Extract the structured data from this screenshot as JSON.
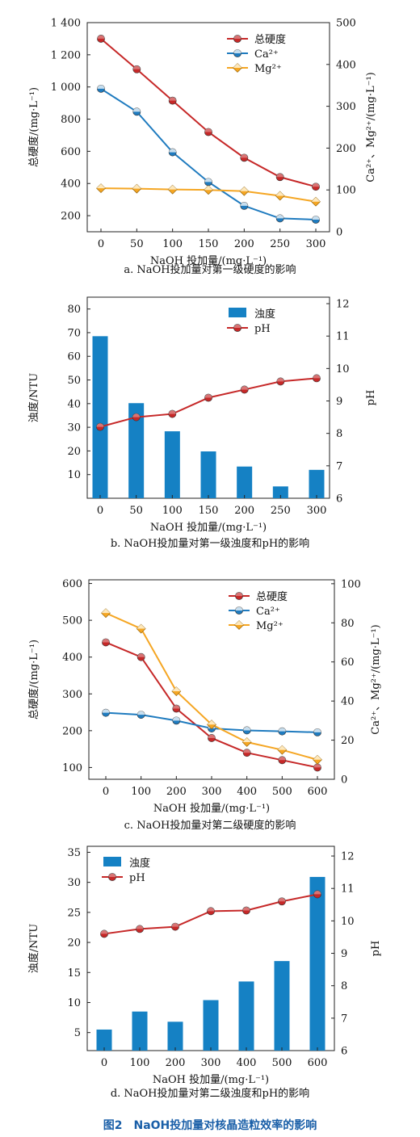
{
  "colors": {
    "total_hardness": "#c62828",
    "ca": "#1f7bbf",
    "mg": "#f5a623",
    "bar": "#1581c4",
    "ph": "#c62828",
    "figure_title": "#1a5fa8"
  },
  "figure_title": "图2　NaOH投加量对核晶造粒效率的影响",
  "chart_data": [
    {
      "id": "a",
      "type": "line",
      "caption": "a. NaOH投加量对第一级硬度的影响",
      "xlabel": "NaOH 投加量/(mg·L⁻¹)",
      "ylabel_left": "总硬度/(mg·L⁻¹)",
      "ylabel_right": "Ca²⁺、Mg²⁺/(mg·L⁻¹)",
      "x": [
        0,
        50,
        100,
        150,
        200,
        250,
        300
      ],
      "xticks": [
        "0",
        "50",
        "100",
        "150",
        "200",
        "250",
        "300"
      ],
      "ylim_left": [
        100,
        1400
      ],
      "yticks_left": [
        "200",
        "400",
        "600",
        "800",
        "1 000",
        "1 200",
        "1 400"
      ],
      "ytick_values_left": [
        200,
        400,
        600,
        800,
        1000,
        1200,
        1400
      ],
      "ylim_right": [
        0,
        500
      ],
      "yticks_right": [
        "0",
        "100",
        "200",
        "300",
        "400",
        "500"
      ],
      "ytick_values_right": [
        0,
        100,
        200,
        300,
        400,
        500
      ],
      "legend_position": "top-right",
      "series": [
        {
          "name": "总硬度",
          "axis": "left",
          "color": "#c62828",
          "values": [
            1300,
            1110,
            915,
            720,
            560,
            440,
            380
          ]
        },
        {
          "name": "Ca²⁺",
          "axis": "right",
          "color": "#1f7bbf",
          "values": [
            342,
            287,
            190,
            119,
            62,
            32,
            29
          ]
        },
        {
          "name": "Mg²⁺",
          "axis": "right",
          "color": "#f5a623",
          "values": [
            104,
            103,
            101,
            100,
            97,
            86,
            72
          ]
        }
      ]
    },
    {
      "id": "b",
      "type": "bar+line",
      "caption": "b. NaOH投加量对第一级浊度和pH的影响",
      "xlabel": "NaOH 投加量/(mg·L⁻¹)",
      "ylabel_left": "浊度/NTU",
      "ylabel_right": "pH",
      "x": [
        0,
        50,
        100,
        150,
        200,
        250,
        300
      ],
      "xticks": [
        "0",
        "50",
        "100",
        "150",
        "200",
        "250",
        "300"
      ],
      "ylim_left": [
        0,
        85
      ],
      "yticks_left": [
        "10",
        "20",
        "30",
        "40",
        "50",
        "60",
        "70",
        "80"
      ],
      "ytick_values_left": [
        10,
        20,
        30,
        40,
        50,
        60,
        70,
        80
      ],
      "ylim_right": [
        6,
        12.2
      ],
      "yticks_right": [
        "6",
        "7",
        "8",
        "9",
        "10",
        "11",
        "12"
      ],
      "ytick_values_right": [
        6,
        7,
        8,
        9,
        10,
        11,
        12
      ],
      "legend_position": "top-right",
      "series": [
        {
          "name": "浊度",
          "kind": "bar",
          "axis": "left",
          "color": "#1581c4",
          "values": [
            68.5,
            40.2,
            28.3,
            19.8,
            13.4,
            5.0,
            12.0
          ]
        },
        {
          "name": "pH",
          "kind": "line",
          "axis": "right",
          "color": "#c62828",
          "values": [
            8.2,
            8.5,
            8.6,
            9.1,
            9.35,
            9.6,
            9.7
          ]
        }
      ]
    },
    {
      "id": "c",
      "type": "line",
      "caption": "c. NaOH投加量对第二级硬度的影响",
      "xlabel": "NaOH 投加量/(mg·L⁻¹)",
      "ylabel_left": "总硬度/(mg·L⁻¹)",
      "ylabel_right": "Ca²⁺、Mg²⁺/(mg·L⁻¹)",
      "x": [
        0,
        100,
        200,
        300,
        400,
        500,
        600
      ],
      "xticks": [
        "0",
        "100",
        "200",
        "300",
        "400",
        "500",
        "600"
      ],
      "ylim_left": [
        68,
        610
      ],
      "yticks_left": [
        "100",
        "200",
        "300",
        "400",
        "500",
        "600"
      ],
      "ytick_values_left": [
        100,
        200,
        300,
        400,
        500,
        600
      ],
      "ylim_right": [
        0,
        102
      ],
      "yticks_right": [
        "0",
        "20",
        "40",
        "60",
        "80",
        "100"
      ],
      "ytick_values_right": [
        0,
        20,
        40,
        60,
        80,
        100
      ],
      "legend_position": "top-right",
      "series": [
        {
          "name": "总硬度",
          "axis": "left",
          "color": "#c62828",
          "values": [
            440,
            400,
            260,
            180,
            140,
            120,
            100
          ]
        },
        {
          "name": "Ca²⁺",
          "axis": "right",
          "color": "#1f7bbf",
          "values": [
            34,
            33,
            30,
            26,
            25,
            24.5,
            24
          ]
        },
        {
          "name": "Mg²⁺",
          "axis": "right",
          "color": "#f5a623",
          "values": [
            85,
            77,
            45,
            28,
            19,
            15,
            10
          ]
        }
      ]
    },
    {
      "id": "d",
      "type": "bar+line",
      "caption": "d. NaOH投加量对第二级浊度和pH的影响",
      "xlabel": "NaOH 投加量/(mg·L⁻¹)",
      "ylabel_left": "浊度/NTU",
      "ylabel_right": "pH",
      "x": [
        0,
        100,
        200,
        300,
        400,
        500,
        600
      ],
      "xticks": [
        "0",
        "100",
        "200",
        "300",
        "400",
        "500",
        "600"
      ],
      "ylim_left": [
        2,
        36
      ],
      "yticks_left": [
        "5",
        "10",
        "15",
        "20",
        "25",
        "30",
        "35"
      ],
      "ytick_values_left": [
        5,
        10,
        15,
        20,
        25,
        30,
        35
      ],
      "ylim_right": [
        6,
        12.3
      ],
      "yticks_right": [
        "6",
        "7",
        "8",
        "9",
        "10",
        "11",
        "12"
      ],
      "ytick_values_right": [
        6,
        7,
        8,
        9,
        10,
        11,
        12
      ],
      "legend_position": "top-left",
      "series": [
        {
          "name": "浊度",
          "kind": "bar",
          "axis": "left",
          "color": "#1581c4",
          "values": [
            5.5,
            8.5,
            6.8,
            10.4,
            13.5,
            16.9,
            30.9
          ]
        },
        {
          "name": "pH",
          "kind": "line",
          "axis": "right",
          "color": "#c62828",
          "values": [
            9.6,
            9.75,
            9.82,
            10.3,
            10.32,
            10.6,
            10.82
          ]
        }
      ]
    }
  ]
}
